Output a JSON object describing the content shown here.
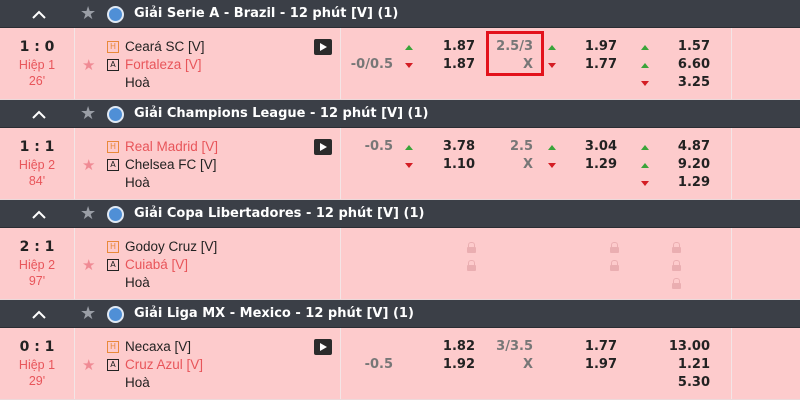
{
  "leagues": [
    {
      "title": "Giải Serie A - Brazil - 12 phút [V] (1)",
      "match": {
        "score": "1 : 0",
        "period": "Hiệp 1",
        "minute": "26'",
        "home": "Ceará SC [V]",
        "away": "Fortaleza [V]",
        "draw": "Hoà",
        "home_red": false,
        "away_red": true,
        "hdp": {
          "line": "-0/0.5",
          "line_row": 1,
          "arrows": [
            "up",
            "down"
          ],
          "odds": [
            "1.87",
            "1.87"
          ]
        },
        "ou": {
          "line": "2.5/3",
          "x": "X",
          "arrows": [
            "up",
            "down"
          ],
          "odds": [
            "1.97",
            "1.77"
          ],
          "highlighted": true
        },
        "x12": {
          "arrows": [
            "up",
            "up",
            "down"
          ],
          "odds": [
            "1.57",
            "6.60",
            "3.25"
          ]
        }
      }
    },
    {
      "title": "Giải Champions League - 12 phút [V] (1)",
      "match": {
        "score": "1 : 1",
        "period": "Hiệp 2",
        "minute": "84'",
        "home": "Real Madrid [V]",
        "away": "Chelsea FC [V]",
        "draw": "Hoà",
        "home_red": true,
        "away_red": false,
        "hdp": {
          "line": "-0.5",
          "line_row": 0,
          "arrows": [
            "up",
            "down"
          ],
          "odds": [
            "3.78",
            "1.10"
          ]
        },
        "ou": {
          "line": "2.5",
          "x": "X",
          "arrows": [
            "up",
            "down"
          ],
          "odds": [
            "3.04",
            "1.29"
          ]
        },
        "x12": {
          "arrows": [
            "up",
            "up",
            "down"
          ],
          "odds": [
            "4.87",
            "9.20",
            "1.29"
          ]
        }
      }
    },
    {
      "title": "Giải Copa Libertadores - 12 phút [V] (1)",
      "match": {
        "score": "2 : 1",
        "period": "Hiệp 2",
        "minute": "97'",
        "home": "Godoy Cruz [V]",
        "away": "Cuiabá [V]",
        "draw": "Hoà",
        "home_red": false,
        "away_red": true,
        "locked": true
      }
    },
    {
      "title": "Giải Liga MX - Mexico - 12 phút [V] (1)",
      "match": {
        "score": "0 : 1",
        "period": "Hiệp 1",
        "minute": "29'",
        "home": "Necaxa [V]",
        "away": "Cruz Azul [V]",
        "draw": "Hoà",
        "home_red": false,
        "away_red": true,
        "hdp": {
          "line": "-0.5",
          "line_row": 1,
          "arrows": [
            "",
            ""
          ],
          "odds": [
            "1.82",
            "1.92"
          ]
        },
        "ou": {
          "line": "3/3.5",
          "x": "X",
          "arrows": [
            "",
            ""
          ],
          "odds": [
            "1.77",
            "1.97"
          ]
        },
        "x12": {
          "arrows": [
            "",
            "",
            ""
          ],
          "odds": [
            "13.00",
            "1.21",
            "5.30"
          ]
        }
      }
    }
  ],
  "colors": {
    "header": "#3b3f47",
    "row": "#fdcbcc",
    "red": "#e8555a",
    "up": "#3aa43a",
    "down": "#d41d24",
    "highlight": "#e3121b"
  }
}
